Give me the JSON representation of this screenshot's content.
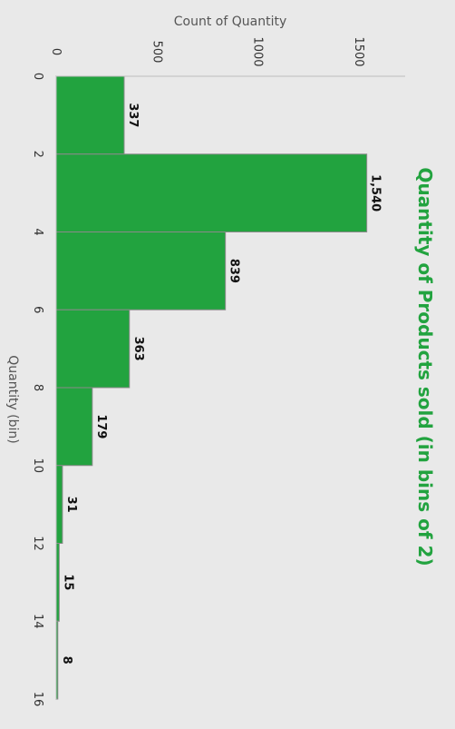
{
  "chart_data": {
    "type": "bar",
    "orientation": "rotated-90-clockwise",
    "title": "Quantity of Products sold (in bins of 2)",
    "xlabel": "Quantity (bin)",
    "ylabel": "Count of Quantity",
    "bins": [
      0,
      2,
      4,
      6,
      8,
      10,
      12,
      14
    ],
    "bin_width": 2,
    "values": [
      337,
      1540,
      839,
      363,
      179,
      31,
      15,
      8
    ],
    "data_labels": [
      "337",
      "1,540",
      "839",
      "363",
      "179",
      "31",
      "15",
      "8"
    ],
    "x_ticks": [
      "0",
      "2",
      "4",
      "6",
      "8",
      "10",
      "12",
      "14",
      "16"
    ],
    "y_ticks": [
      "0",
      "500",
      "1000",
      "1500"
    ],
    "xlim": [
      0,
      16
    ],
    "ylim": [
      0,
      1750
    ],
    "grid": false,
    "colors": {
      "bar": "#22a33f",
      "bar_edge": "#8a8a8a",
      "title": "#22a33f",
      "background": "#e9e9e9"
    }
  }
}
